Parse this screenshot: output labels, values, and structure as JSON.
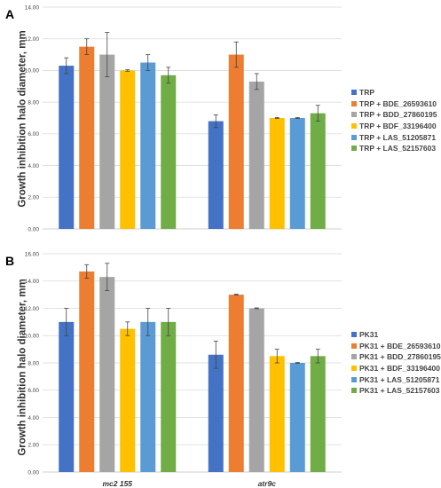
{
  "chart_data": [
    {
      "type": "bar",
      "panel_label": "A",
      "ylabel": "Growth inhibition halo diameter, mm",
      "xlabel": "",
      "ylim": [
        0,
        14
      ],
      "yticks": [
        "0.00",
        "2.00",
        "4.00",
        "6.00",
        "8.00",
        "10.00",
        "12.00",
        "14.00"
      ],
      "grid": true,
      "legend_position": "right",
      "categories": [
        "mc2 155",
        "atr9c"
      ],
      "series": [
        {
          "name": "TRP",
          "color": "#4472C4",
          "values": [
            10.3,
            6.8
          ],
          "errors": [
            0.5,
            0.4
          ]
        },
        {
          "name": "TRP + BDE_26593610",
          "color": "#ED7D31",
          "values": [
            11.5,
            11.0
          ],
          "errors": [
            0.5,
            0.8
          ]
        },
        {
          "name": "TRP + BDD_27860195",
          "color": "#A5A5A5",
          "values": [
            11.0,
            9.3
          ],
          "errors": [
            1.4,
            0.5
          ]
        },
        {
          "name": "TRP + BDF_33196400",
          "color": "#FFC000",
          "values": [
            10.0,
            7.0
          ],
          "errors": [
            0.05,
            0.03
          ]
        },
        {
          "name": "TRP + LAS_51205871",
          "color": "#5B9BD5",
          "values": [
            10.5,
            7.0
          ],
          "errors": [
            0.5,
            0.03
          ]
        },
        {
          "name": "TRP + LAS_52157603",
          "color": "#70AD47",
          "values": [
            9.7,
            7.3
          ],
          "errors": [
            0.5,
            0.5
          ]
        }
      ]
    },
    {
      "type": "bar",
      "panel_label": "B",
      "ylabel": "Growth inhibition halo diameter, mm",
      "xlabel": "",
      "ylim": [
        0,
        16
      ],
      "yticks": [
        "0.00",
        "2.00",
        "4.00",
        "6.00",
        "8.00",
        "10.00",
        "12.00",
        "14.00",
        "16.00"
      ],
      "grid": true,
      "legend_position": "right",
      "categories": [
        "mc2 155",
        "atr9c"
      ],
      "series": [
        {
          "name": "PK31",
          "color": "#4472C4",
          "values": [
            11.0,
            8.6
          ],
          "errors": [
            1.0,
            1.0
          ]
        },
        {
          "name": "PK31 + BDE_26593610",
          "color": "#ED7D31",
          "values": [
            14.7,
            13.0
          ],
          "errors": [
            0.5,
            0.03
          ]
        },
        {
          "name": "PK31 + BDD_27860195",
          "color": "#A5A5A5",
          "values": [
            14.3,
            12.0
          ],
          "errors": [
            1.0,
            0.03
          ]
        },
        {
          "name": "PK31 + BDF_33196400",
          "color": "#FFC000",
          "values": [
            10.5,
            8.5
          ],
          "errors": [
            0.5,
            0.5
          ]
        },
        {
          "name": "PK31 + LAS_51205871",
          "color": "#5B9BD5",
          "values": [
            11.0,
            8.0
          ],
          "errors": [
            1.0,
            0.03
          ]
        },
        {
          "name": "PK31 + LAS_52157603",
          "color": "#70AD47",
          "values": [
            11.0,
            8.5
          ],
          "errors": [
            1.0,
            0.5
          ]
        }
      ]
    }
  ]
}
